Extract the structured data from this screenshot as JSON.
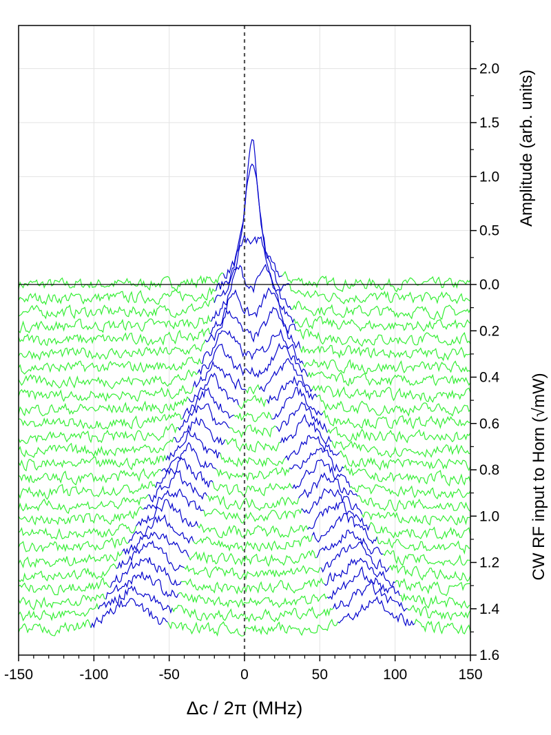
{
  "chart_data": {
    "type": "line",
    "xlabel": "Δc / 2π (MHz)",
    "ylabel_top": "Amplitude (arb. units)",
    "ylabel_bottom": "CW RF input to Horn (√mW)",
    "xlim": [
      -150,
      150
    ],
    "x_ticks": [
      "-150",
      "-100",
      "-50",
      "0",
      "50",
      "100",
      "150"
    ],
    "y_top_ticks": [
      "2.0",
      "1.5",
      "1.0",
      "0.5",
      "0.0"
    ],
    "y_bottom_ticks": [
      "0.0",
      "0.2",
      "0.4",
      "0.6",
      "0.8",
      "1.0",
      "1.2",
      "1.4",
      "1.6"
    ],
    "amplitude_lim": [
      0,
      2.4
    ],
    "offset_lim": [
      0,
      1.6
    ],
    "reference_line_x": 0,
    "grid": true,
    "colors": {
      "fit": "#0000cc",
      "noise": "#33ee33",
      "axis": "#000000",
      "grid": "#e3e3e3",
      "reference": "#555555"
    },
    "series": [
      {
        "offset": 0.0,
        "split": 0,
        "amplitude": 1.36
      },
      {
        "offset": 0.06,
        "split": 2,
        "amplitude": 1.2
      },
      {
        "offset": 0.12,
        "split": 6,
        "amplitude": 1.0
      },
      {
        "offset": 0.18,
        "split": 9,
        "amplitude": 0.85
      },
      {
        "offset": 0.24,
        "split": 12,
        "amplitude": 0.75
      },
      {
        "offset": 0.3,
        "split": 15,
        "amplitude": 0.68
      },
      {
        "offset": 0.36,
        "split": 18,
        "amplitude": 0.62
      },
      {
        "offset": 0.42,
        "split": 21,
        "amplitude": 0.58
      },
      {
        "offset": 0.48,
        "split": 24,
        "amplitude": 0.55
      },
      {
        "offset": 0.54,
        "split": 27,
        "amplitude": 0.53
      },
      {
        "offset": 0.6,
        "split": 30,
        "amplitude": 0.52
      },
      {
        "offset": 0.66,
        "split": 33,
        "amplitude": 0.51
      },
      {
        "offset": 0.72,
        "split": 36,
        "amplitude": 0.5
      },
      {
        "offset": 0.78,
        "split": 40,
        "amplitude": 0.5
      },
      {
        "offset": 0.84,
        "split": 43,
        "amplitude": 0.5
      },
      {
        "offset": 0.9,
        "split": 46,
        "amplitude": 0.5
      },
      {
        "offset": 0.96,
        "split": 50,
        "amplitude": 0.5
      },
      {
        "offset": 1.02,
        "split": 53,
        "amplitude": 0.5
      },
      {
        "offset": 1.08,
        "split": 57,
        "amplitude": 0.5
      },
      {
        "offset": 1.14,
        "split": 61,
        "amplitude": 0.5
      },
      {
        "offset": 1.2,
        "split": 65,
        "amplitude": 0.5
      },
      {
        "offset": 1.26,
        "split": 68,
        "amplitude": 0.5
      },
      {
        "offset": 1.32,
        "split": 71,
        "amplitude": 0.5
      },
      {
        "offset": 1.38,
        "split": 74,
        "amplitude": 0.5
      },
      {
        "offset": 1.44,
        "split": 78,
        "amplitude": 0.5
      },
      {
        "offset": 1.5,
        "split": 82,
        "amplitude": 0.5
      }
    ]
  }
}
